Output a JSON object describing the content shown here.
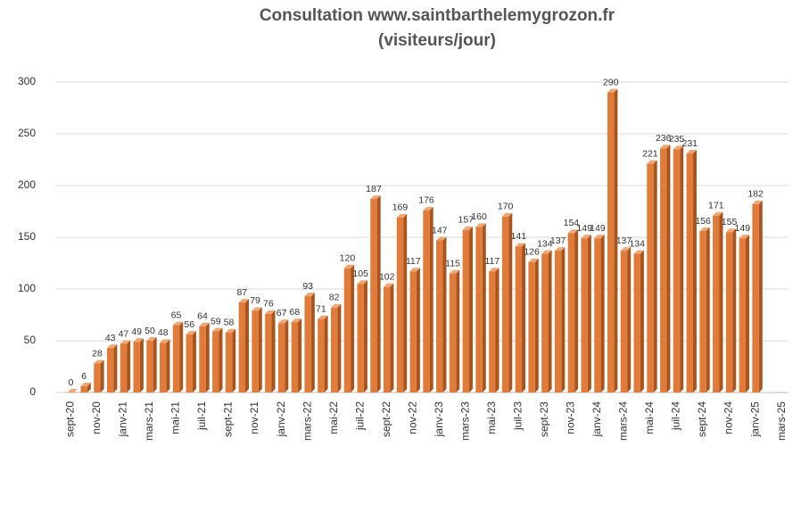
{
  "chart_data": {
    "type": "bar",
    "title": "Consultation www.saintbarthelemygrozon.fr",
    "subtitle": "(visiteurs/jour)",
    "categories": [
      "sept-20",
      null,
      "nov-20",
      null,
      "janv-21",
      null,
      "mars-21",
      null,
      "mai-21",
      null,
      "juil-21",
      null,
      "sept-21",
      null,
      "nov-21",
      null,
      "janv-22",
      null,
      "mars-22",
      null,
      "mai-22",
      null,
      "juil-22",
      null,
      "sept-22",
      null,
      "nov-22",
      null,
      "janv-23",
      null,
      "mars-23",
      null,
      "mai-23",
      null,
      "juil-23",
      null,
      "sept-23",
      null,
      "nov-23",
      null,
      "janv-24",
      null,
      "mars-24",
      null,
      "mai-24",
      null,
      "juil-24",
      null,
      "sept-24",
      null,
      "nov-24",
      null,
      "janv-25",
      null,
      "mars-25"
    ],
    "values": [
      0,
      6,
      28,
      43,
      47,
      49,
      50,
      48,
      65,
      56,
      64,
      59,
      58,
      87,
      79,
      76,
      67,
      68,
      93,
      71,
      82,
      120,
      105,
      187,
      102,
      169,
      117,
      176,
      147,
      115,
      157,
      160,
      117,
      170,
      141,
      126,
      134,
      137,
      154,
      149,
      149,
      290,
      137,
      134,
      221,
      236,
      235,
      231,
      156,
      171,
      155,
      149,
      182,
      null,
      null
    ],
    "color": "#e07b39",
    "ylim": [
      0,
      300
    ],
    "yticks": [
      0,
      50,
      100,
      150,
      200,
      250,
      300
    ],
    "grid": true
  }
}
